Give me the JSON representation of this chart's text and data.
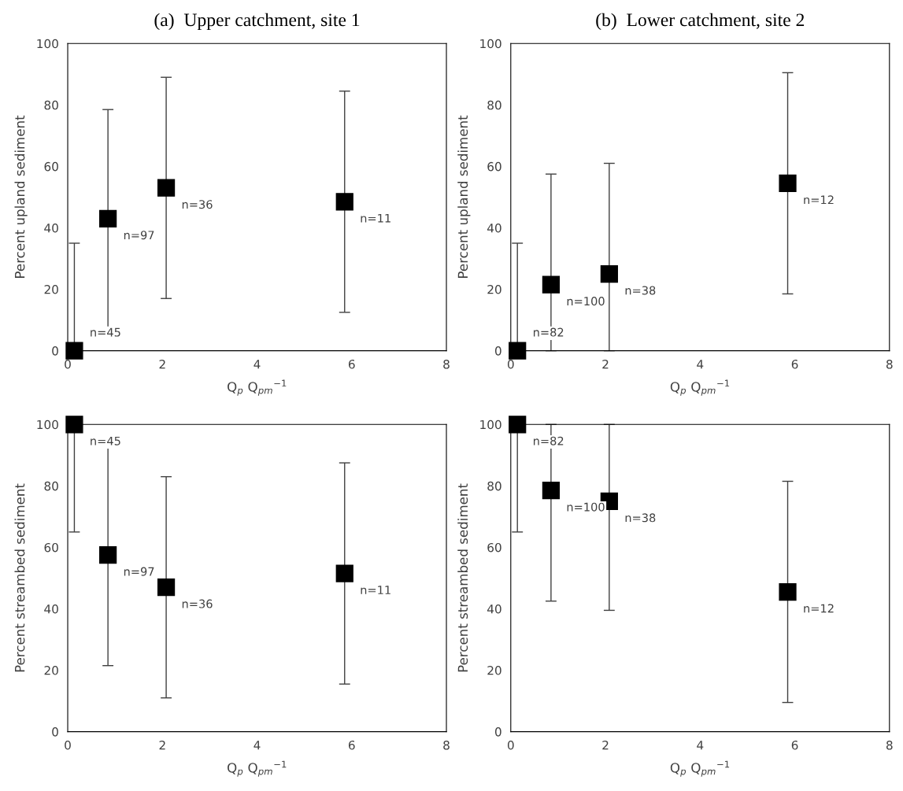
{
  "chart_data": [
    {
      "type": "scatter",
      "title": "(a)  Upper catchment, site 1",
      "xlabel": "Q$_{p}$ Q$_{pm}$$^{−1}$",
      "ylabel": "Percent upland sediment",
      "x": [
        0.14,
        0.85,
        2.08,
        5.85
      ],
      "xlim": [
        0,
        8
      ],
      "xticks": [
        0,
        2,
        4,
        6,
        8
      ],
      "ylim": [
        0,
        100
      ],
      "yticks": [
        0,
        20,
        40,
        60,
        80,
        100
      ],
      "grid": false,
      "legend": false,
      "marker": "square",
      "series": [
        {
          "color": "#000000",
          "values": [
            0,
            43,
            53,
            48.5
          ],
          "errors": [
            [
              0,
              35
            ],
            [
              6.5,
              78.5
            ],
            [
              17,
              89
            ],
            [
              12.5,
              84.5
            ]
          ]
        }
      ],
      "annotations": [
        "n=45",
        "n=97",
        "n=36",
        "n=11"
      ]
    },
    {
      "type": "scatter",
      "title": "(b)  Lower catchment, site 2",
      "xlabel": "Q$_{p}$ Q$_{pm}$$^{−1}$",
      "ylabel": "Percent upland sediment",
      "x": [
        0.14,
        0.85,
        2.08,
        5.85
      ],
      "xlim": [
        0,
        8
      ],
      "xticks": [
        0,
        2,
        4,
        6,
        8
      ],
      "ylim": [
        0,
        100
      ],
      "yticks": [
        0,
        20,
        40,
        60,
        80,
        100
      ],
      "grid": false,
      "legend": false,
      "marker": "square",
      "series": [
        {
          "color": "#000000",
          "values": [
            0,
            21.5,
            25,
            54.5
          ],
          "errors": [
            [
              0,
              35
            ],
            [
              0,
              57.5
            ],
            [
              0,
              61
            ],
            [
              18.5,
              90.5
            ]
          ]
        }
      ],
      "annotations": [
        "n=82",
        "n=100",
        "n=38",
        "n=12"
      ]
    },
    {
      "type": "scatter",
      "xlabel": "Q$_{p}$ Q$_{pm}$$^{−1}$",
      "ylabel": "Percent streambed sediment",
      "x": [
        0.14,
        0.85,
        2.08,
        5.85
      ],
      "xlim": [
        0,
        8
      ],
      "xticks": [
        0,
        2,
        4,
        6,
        8
      ],
      "ylim": [
        0,
        100
      ],
      "yticks": [
        0,
        20,
        40,
        60,
        80,
        100
      ],
      "grid": false,
      "legend": false,
      "marker": "square",
      "series": [
        {
          "color": "#000000",
          "values": [
            100,
            57.5,
            47,
            51.5
          ],
          "errors": [
            [
              65,
              100
            ],
            [
              21.5,
              93.5
            ],
            [
              11,
              83
            ],
            [
              15.5,
              87.5
            ]
          ]
        }
      ],
      "annotations": [
        "n=45",
        "n=97",
        "n=36",
        "n=11"
      ]
    },
    {
      "type": "scatter",
      "xlabel": "Q$_{p}$ Q$_{pm}$$^{−1}$",
      "ylabel": "Percent streambed sediment",
      "x": [
        0.14,
        0.85,
        2.08,
        5.85
      ],
      "xlim": [
        0,
        8
      ],
      "xticks": [
        0,
        2,
        4,
        6,
        8
      ],
      "ylim": [
        0,
        100
      ],
      "yticks": [
        0,
        20,
        40,
        60,
        80,
        100
      ],
      "grid": false,
      "legend": false,
      "marker": "square",
      "series": [
        {
          "color": "#000000",
          "values": [
            100,
            78.5,
            75,
            45.5
          ],
          "errors": [
            [
              65,
              100
            ],
            [
              42.5,
              100
            ],
            [
              39.5,
              100
            ],
            [
              9.5,
              81.5
            ]
          ]
        }
      ],
      "annotations": [
        "n=82",
        "n=100",
        "n=38",
        "n=12"
      ]
    }
  ]
}
